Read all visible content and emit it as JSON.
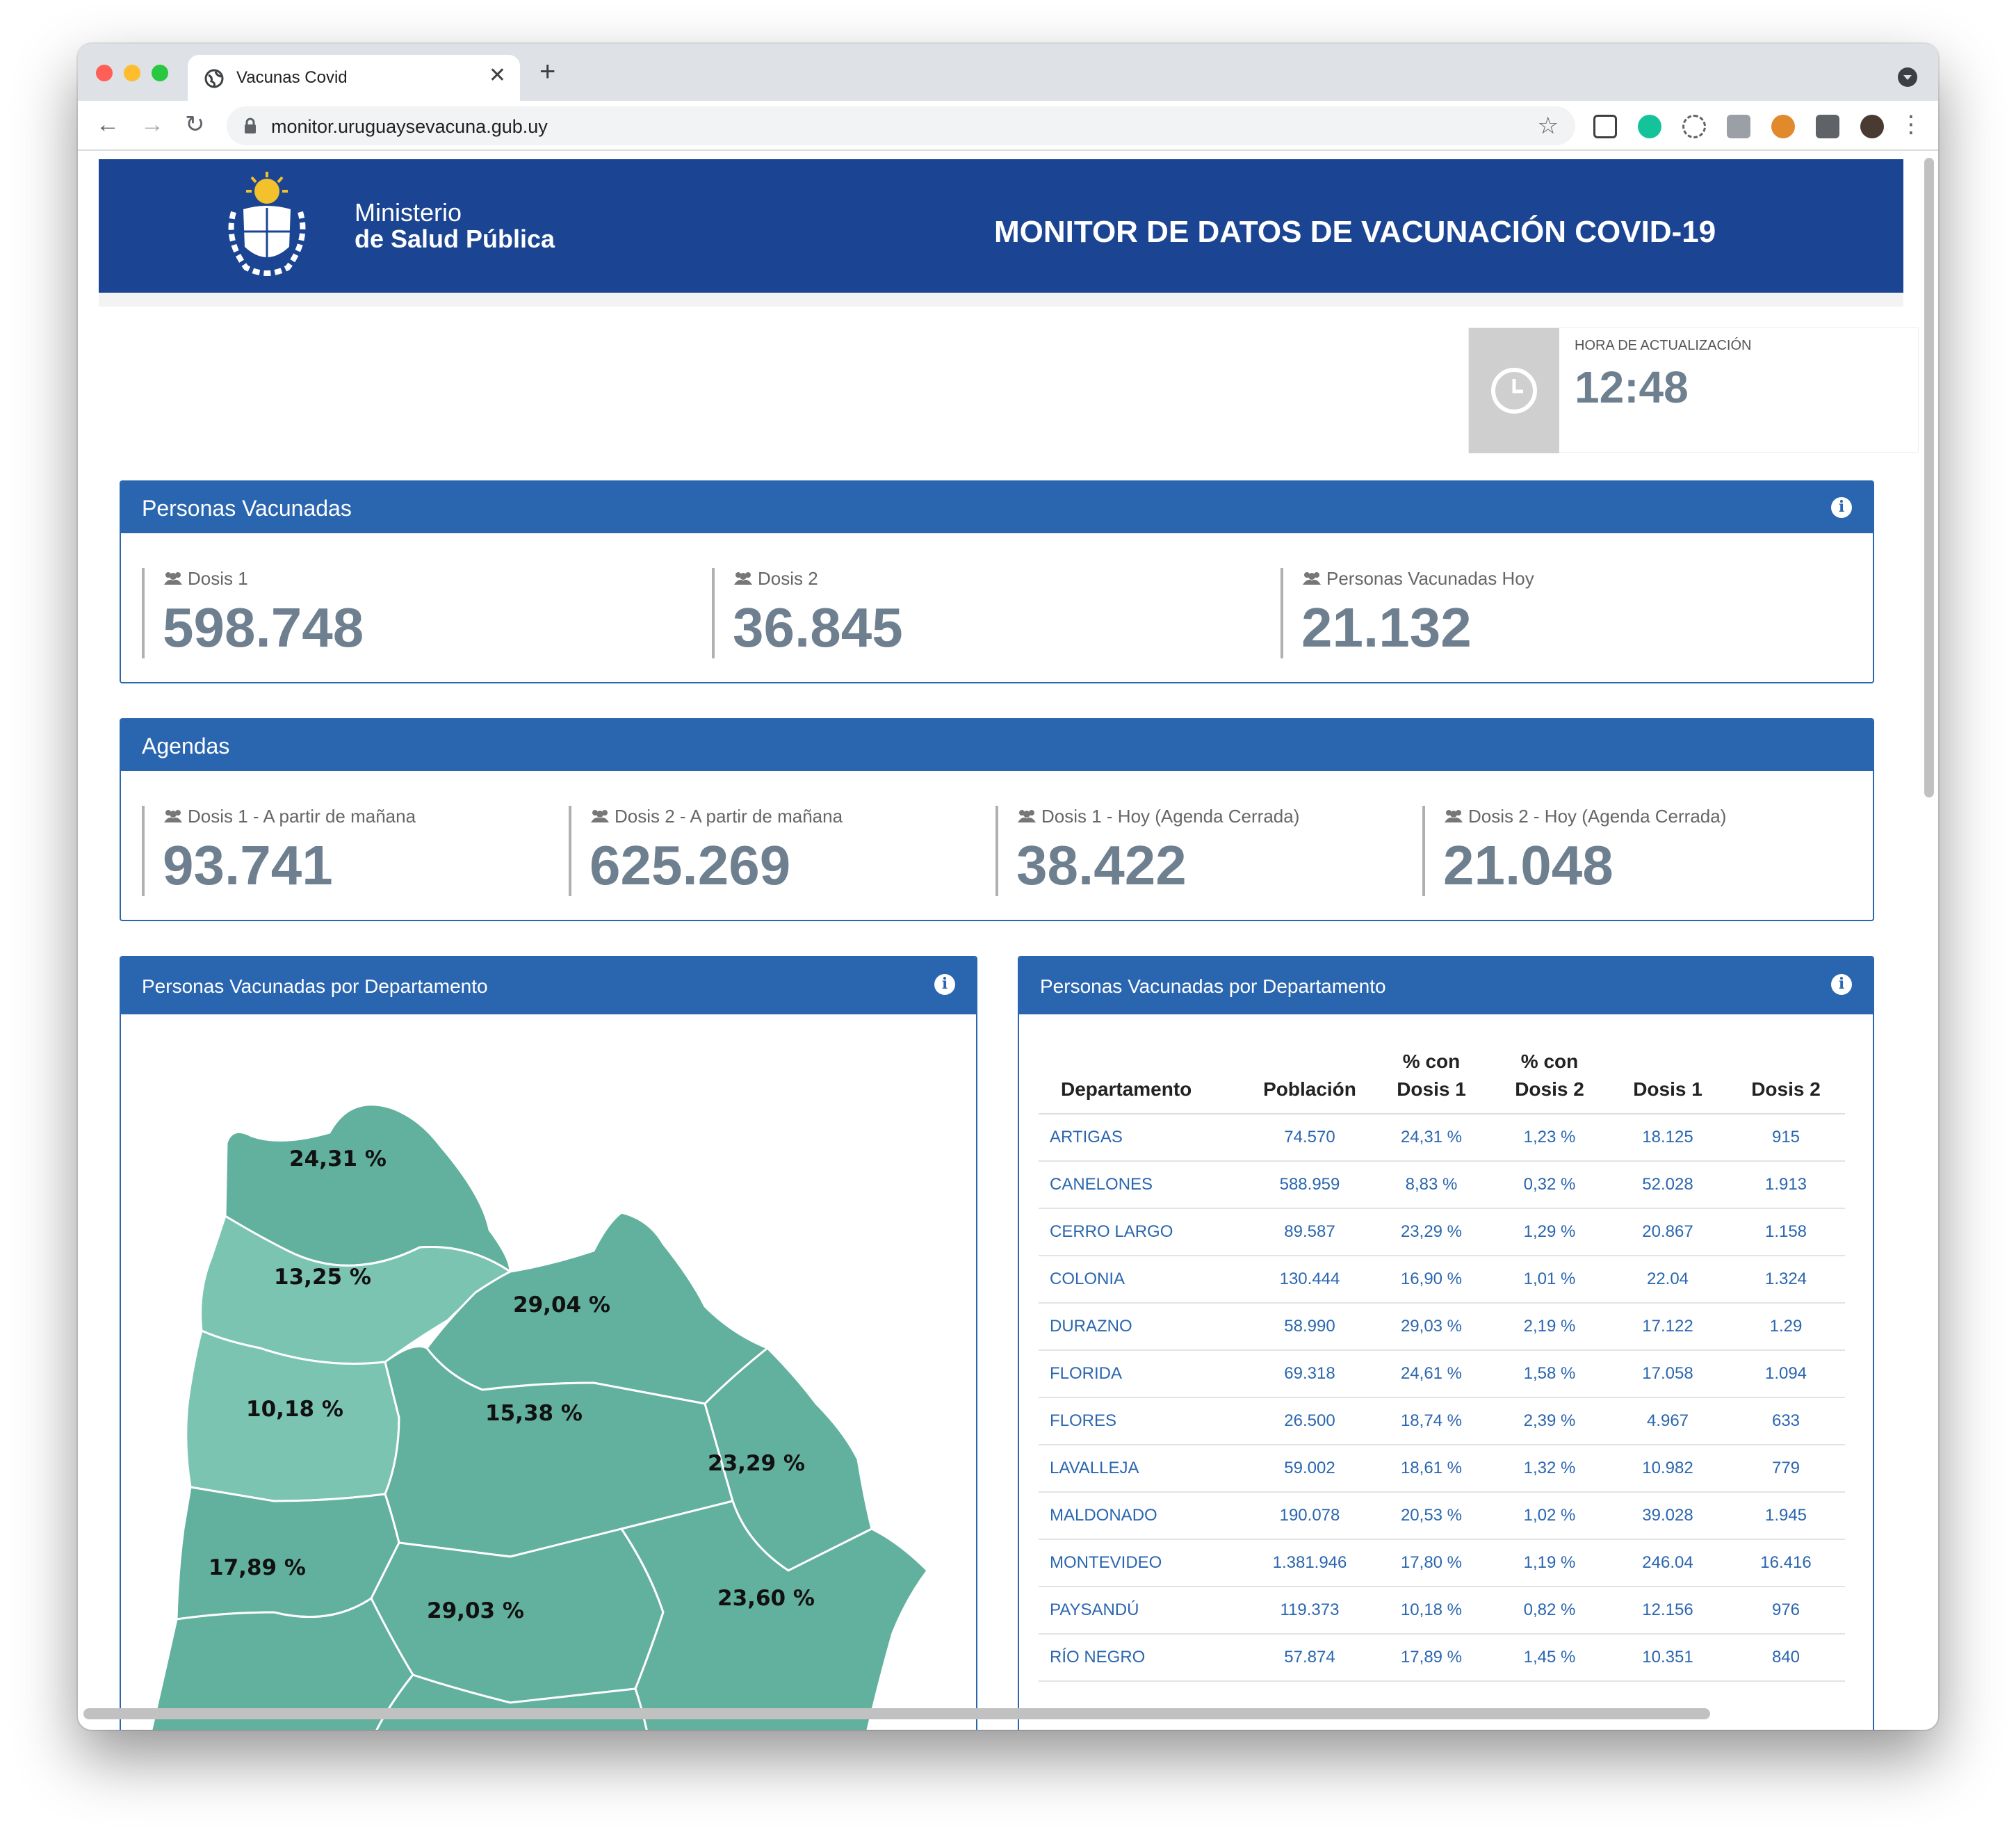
{
  "browser": {
    "tab_title": "Vacunas Covid",
    "tab_close": "✕",
    "new_tab": "+",
    "url": "monitor.uruguaysevacuna.gub.uy",
    "nav": {
      "back": "←",
      "forward": "→",
      "reload": "↻",
      "star": "☆",
      "menu": "⋮"
    }
  },
  "header": {
    "ministry_line1": "Ministerio",
    "ministry_line2": "de Salud Pública",
    "title": "MONITOR DE DATOS DE VACUNACIÓN COVID-19"
  },
  "update": {
    "label": "HORA DE ACTUALIZACIÓN",
    "time": "12:48"
  },
  "vaccinated": {
    "title": "Personas Vacunadas",
    "stats": [
      {
        "label": "Dosis 1",
        "value": "598.748"
      },
      {
        "label": "Dosis 2",
        "value": "36.845"
      },
      {
        "label": "Personas Vacunadas Hoy",
        "value": "21.132"
      }
    ]
  },
  "agendas": {
    "title": "Agendas",
    "stats": [
      {
        "label": "Dosis 1 - A partir de mañana",
        "value": "93.741"
      },
      {
        "label": "Dosis 2 - A partir de mañana",
        "value": "625.269"
      },
      {
        "label": "Dosis 1 - Hoy (Agenda Cerrada)",
        "value": "38.422"
      },
      {
        "label": "Dosis 2 - Hoy (Agenda Cerrada)",
        "value": "21.048"
      }
    ]
  },
  "map_panel": {
    "title": "Personas Vacunadas por Departamento",
    "labels": [
      "24,31 %",
      "13,25 %",
      "29,04 %",
      "10,18 %",
      "15,38 %",
      "23,29 %",
      "17,89 %",
      "29,03 %",
      "23,60 %"
    ],
    "colors": {
      "dark": "#62b09e",
      "light": "#7bc4b2",
      "border": "#ffffff"
    }
  },
  "table_panel": {
    "title": "Personas Vacunadas por Departamento",
    "headers": [
      "Departamento",
      "Población",
      "% con Dosis 1",
      "% con Dosis 2",
      "Dosis 1",
      "Dosis 2"
    ],
    "rows": [
      [
        "ARTIGAS",
        "74.570",
        "24,31 %",
        "1,23 %",
        "18.125",
        "915"
      ],
      [
        "CANELONES",
        "588.959",
        "8,83 %",
        "0,32 %",
        "52.028",
        "1.913"
      ],
      [
        "CERRO LARGO",
        "89.587",
        "23,29 %",
        "1,29 %",
        "20.867",
        "1.158"
      ],
      [
        "COLONIA",
        "130.444",
        "16,90 %",
        "1,01 %",
        "22.04",
        "1.324"
      ],
      [
        "DURAZNO",
        "58.990",
        "29,03 %",
        "2,19 %",
        "17.122",
        "1.29"
      ],
      [
        "FLORIDA",
        "69.318",
        "24,61 %",
        "1,58 %",
        "17.058",
        "1.094"
      ],
      [
        "FLORES",
        "26.500",
        "18,74 %",
        "2,39 %",
        "4.967",
        "633"
      ],
      [
        "LAVALLEJA",
        "59.002",
        "18,61 %",
        "1,32 %",
        "10.982",
        "779"
      ],
      [
        "MALDONADO",
        "190.078",
        "20,53 %",
        "1,02 %",
        "39.028",
        "1.945"
      ],
      [
        "MONTEVIDEO",
        "1.381.946",
        "17,80 %",
        "1,19 %",
        "246.04",
        "16.416"
      ],
      [
        "PAYSANDÚ",
        "119.373",
        "10,18 %",
        "0,82 %",
        "12.156",
        "976"
      ],
      [
        "RÍO NEGRO",
        "57.874",
        "17,89 %",
        "1,45 %",
        "10.351",
        "840"
      ]
    ]
  },
  "colors": {
    "header_bg": "#1b4593",
    "panel_blue": "#2a66b0",
    "stat_grey": "#6e7f8f"
  }
}
